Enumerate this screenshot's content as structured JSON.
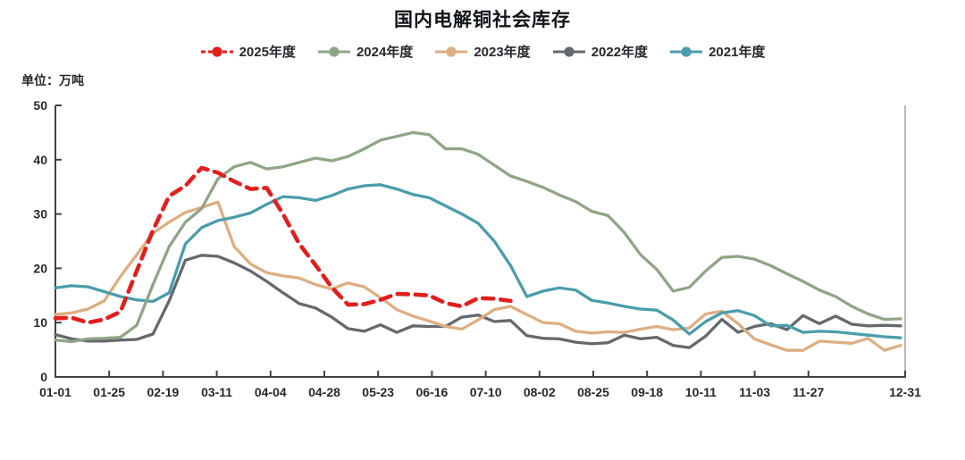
{
  "title": "国内电解铜社会库存",
  "unit_label": "单位：万吨",
  "colors": {
    "s2025": "#e31e1e",
    "s2024": "#90a487",
    "s2023": "#ddae82",
    "s2022": "#65696d",
    "s2021": "#4a9dab",
    "axis": "#3f4347",
    "right_spine": "#a8a8a8",
    "text": "#26292c"
  },
  "chart_data": {
    "type": "line",
    "title": "国内电解铜社会库存",
    "ylabel": "单位：万吨",
    "ylim": [
      0,
      50
    ],
    "y_ticks": [
      0,
      10,
      20,
      30,
      40,
      50
    ],
    "grid": false,
    "legend_position": "top",
    "x_unit": "week (52 weeks per year)",
    "x_tick_labels": [
      "01-01",
      "01-25",
      "02-19",
      "03-11",
      "04-04",
      "04-28",
      "05-23",
      "06-16",
      "07-10",
      "08-02",
      "08-25",
      "09-18",
      "10-11",
      "11-03",
      "11-27",
      "12-31"
    ],
    "series": [
      {
        "name": "2025年度",
        "dashed": true,
        "color": "#e31e1e",
        "values": [
          10.8,
          10.9,
          10.0,
          10.6,
          12.0,
          19.5,
          27.0,
          33.3,
          35.2,
          38.5,
          37.6,
          36.0,
          34.6,
          34.8,
          30.0,
          24.5,
          20.6,
          16.5,
          13.3,
          13.4,
          14.2,
          15.3,
          15.2,
          15.0,
          13.6,
          13.0,
          14.5,
          14.4,
          14.0
        ]
      },
      {
        "name": "2024年度",
        "dashed": false,
        "color": "#90a487",
        "values": [
          6.8,
          6.5,
          7.0,
          7.1,
          7.3,
          9.5,
          17.0,
          24.0,
          28.5,
          31.0,
          36.5,
          38.7,
          39.5,
          38.3,
          38.7,
          39.5,
          40.3,
          39.8,
          40.6,
          42.0,
          43.6,
          44.3,
          45.0,
          44.6,
          42.0,
          42.0,
          41.0,
          39.0,
          37.0,
          36.0,
          34.9,
          33.5,
          32.3,
          30.5,
          29.7,
          26.6,
          22.5,
          19.8,
          15.8,
          16.5,
          19.5,
          22.0,
          22.2,
          21.7,
          20.5,
          19.0,
          17.6,
          16.0,
          14.8,
          13.0,
          11.6,
          10.6,
          10.7
        ]
      },
      {
        "name": "2023年度",
        "dashed": false,
        "color": "#ddae82",
        "values": [
          11.5,
          11.8,
          12.5,
          14.0,
          18.5,
          22.5,
          26.5,
          28.5,
          30.3,
          31.2,
          32.2,
          24.0,
          20.8,
          19.2,
          18.6,
          18.2,
          17.0,
          16.2,
          17.3,
          16.6,
          14.6,
          12.4,
          11.2,
          10.3,
          9.3,
          8.8,
          10.5,
          12.4,
          13.0,
          11.5,
          10.0,
          9.8,
          8.4,
          8.1,
          8.3,
          8.2,
          8.8,
          9.3,
          8.7,
          9.0,
          11.6,
          12.1,
          9.8,
          7.0,
          5.9,
          4.9,
          4.9,
          6.6,
          6.4,
          6.2,
          7.1,
          4.9,
          5.8
        ]
      },
      {
        "name": "2022年度",
        "dashed": false,
        "color": "#65696d",
        "values": [
          7.8,
          7.0,
          6.6,
          6.6,
          6.8,
          6.9,
          7.9,
          14.0,
          21.5,
          22.4,
          22.2,
          21.0,
          19.5,
          17.6,
          15.5,
          13.5,
          12.7,
          11.0,
          8.9,
          8.4,
          9.6,
          8.2,
          9.4,
          9.3,
          9.3,
          11.0,
          11.4,
          10.2,
          10.4,
          7.6,
          7.1,
          7.0,
          6.4,
          6.1,
          6.3,
          7.7,
          7.0,
          7.3,
          5.8,
          5.4,
          7.5,
          10.6,
          8.2,
          9.3,
          9.8,
          8.7,
          11.3,
          9.8,
          11.2,
          9.7,
          9.4,
          9.5,
          9.4
        ]
      },
      {
        "name": "2021年度",
        "dashed": false,
        "color": "#4a9dab",
        "values": [
          16.4,
          16.8,
          16.6,
          15.7,
          14.8,
          14.2,
          13.9,
          15.5,
          24.5,
          27.5,
          28.8,
          29.4,
          30.2,
          31.8,
          33.2,
          33.0,
          32.5,
          33.4,
          34.6,
          35.2,
          35.4,
          34.6,
          33.6,
          33.0,
          31.5,
          30.0,
          28.3,
          25.0,
          20.5,
          14.8,
          15.8,
          16.4,
          16.0,
          14.1,
          13.6,
          13.0,
          12.5,
          12.3,
          10.5,
          7.9,
          10.2,
          11.8,
          12.2,
          11.3,
          9.4,
          9.5,
          8.2,
          8.4,
          8.3,
          8.0,
          7.7,
          7.4,
          7.2
        ]
      }
    ]
  }
}
